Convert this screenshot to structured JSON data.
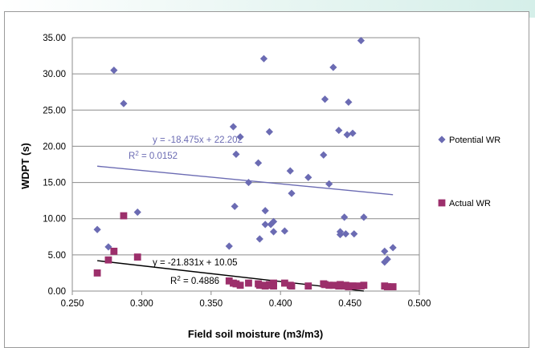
{
  "chart_data": {
    "type": "scatter",
    "xlabel": "Field soil moisture (m3/m3)",
    "ylabel": "WDPT (s)",
    "xlim": [
      0.25,
      0.5
    ],
    "ylim": [
      0,
      35
    ],
    "x_ticks": [
      "0.250",
      "0.300",
      "0.350",
      "0.400",
      "0.450",
      "0.500"
    ],
    "y_ticks": [
      "0.00",
      "5.00",
      "10.00",
      "15.00",
      "20.00",
      "25.00",
      "30.00",
      "35.00"
    ],
    "grid": "horizontal",
    "legend_position": "right",
    "series": [
      {
        "name": "Potential WR",
        "color": "#6b6bb3",
        "marker": "diamond",
        "points": [
          [
            0.268,
            8.5
          ],
          [
            0.276,
            6.1
          ],
          [
            0.28,
            30.5
          ],
          [
            0.287,
            25.9
          ],
          [
            0.297,
            10.9
          ],
          [
            0.363,
            6.2
          ],
          [
            0.366,
            22.7
          ],
          [
            0.367,
            11.7
          ],
          [
            0.368,
            18.9
          ],
          [
            0.371,
            21.3
          ],
          [
            0.377,
            15.0
          ],
          [
            0.384,
            17.7
          ],
          [
            0.385,
            7.2
          ],
          [
            0.388,
            32.1
          ],
          [
            0.389,
            11.1
          ],
          [
            0.389,
            9.2
          ],
          [
            0.392,
            22.0
          ],
          [
            0.393,
            9.2
          ],
          [
            0.395,
            9.6
          ],
          [
            0.395,
            8.2
          ],
          [
            0.403,
            8.3
          ],
          [
            0.407,
            16.6
          ],
          [
            0.408,
            13.5
          ],
          [
            0.42,
            15.7
          ],
          [
            0.431,
            18.8
          ],
          [
            0.432,
            26.5
          ],
          [
            0.435,
            14.8
          ],
          [
            0.438,
            30.9
          ],
          [
            0.442,
            22.2
          ],
          [
            0.443,
            7.8
          ],
          [
            0.443,
            8.2
          ],
          [
            0.446,
            10.2
          ],
          [
            0.447,
            7.9
          ],
          [
            0.448,
            21.6
          ],
          [
            0.449,
            26.1
          ],
          [
            0.452,
            21.8
          ],
          [
            0.453,
            7.9
          ],
          [
            0.458,
            34.6
          ],
          [
            0.46,
            10.2
          ],
          [
            0.475,
            4.0
          ],
          [
            0.475,
            5.5
          ],
          [
            0.477,
            4.4
          ],
          [
            0.481,
            6.0
          ]
        ]
      },
      {
        "name": "Actual WR",
        "color": "#9c2f6b",
        "marker": "square",
        "points": [
          [
            0.268,
            2.5
          ],
          [
            0.276,
            4.3
          ],
          [
            0.28,
            5.5
          ],
          [
            0.287,
            10.4
          ],
          [
            0.297,
            4.7
          ],
          [
            0.363,
            1.4
          ],
          [
            0.366,
            1.1
          ],
          [
            0.368,
            1.0
          ],
          [
            0.371,
            0.8
          ],
          [
            0.377,
            1.1
          ],
          [
            0.384,
            1.0
          ],
          [
            0.385,
            0.8
          ],
          [
            0.388,
            0.8
          ],
          [
            0.389,
            0.7
          ],
          [
            0.392,
            0.9
          ],
          [
            0.393,
            0.8
          ],
          [
            0.395,
            1.1
          ],
          [
            0.395,
            0.7
          ],
          [
            0.403,
            1.1
          ],
          [
            0.407,
            0.8
          ],
          [
            0.408,
            0.7
          ],
          [
            0.42,
            0.7
          ],
          [
            0.431,
            1.0
          ],
          [
            0.432,
            0.9
          ],
          [
            0.435,
            0.8
          ],
          [
            0.438,
            0.8
          ],
          [
            0.442,
            0.7
          ],
          [
            0.443,
            0.9
          ],
          [
            0.446,
            0.7
          ],
          [
            0.447,
            0.8
          ],
          [
            0.448,
            0.7
          ],
          [
            0.449,
            0.6
          ],
          [
            0.452,
            0.7
          ],
          [
            0.453,
            0.7
          ],
          [
            0.458,
            0.7
          ],
          [
            0.46,
            0.8
          ],
          [
            0.475,
            0.7
          ],
          [
            0.477,
            0.6
          ],
          [
            0.481,
            0.6
          ]
        ]
      }
    ],
    "trendlines": [
      {
        "series": "Potential WR",
        "slope": -18.475,
        "intercept": 22.202,
        "x_range": [
          0.268,
          0.481
        ],
        "equation_label": "y = -18.475x + 22.202",
        "r2_prefix": "R",
        "r2_value": " = 0.0152",
        "color": "#6b6bb3"
      },
      {
        "series": "Actual WR",
        "slope": -21.831,
        "intercept": 10.05,
        "x_range": [
          0.268,
          0.46
        ],
        "equation_label": "y = -21.831x + 10.05",
        "r2_prefix": "R",
        "r2_value": " = 0.4886",
        "color": "#000000"
      }
    ]
  }
}
